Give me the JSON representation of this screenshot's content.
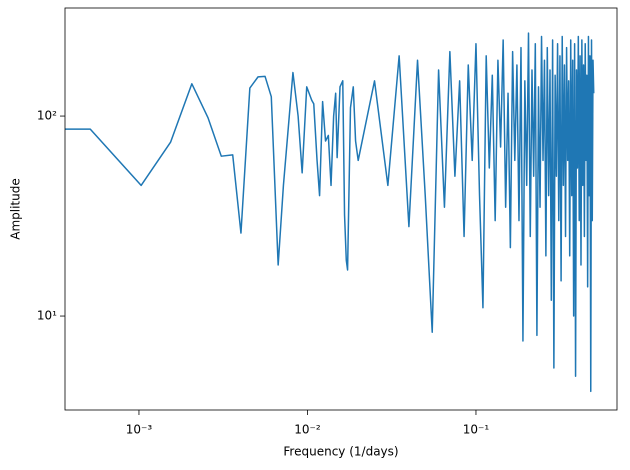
{
  "chart_data": {
    "type": "line",
    "xlabel": "Frequency (1/days)",
    "ylabel": "Amplitude",
    "xscale": "log",
    "yscale": "log",
    "xlim": [
      0.000364,
      0.687
    ],
    "ylim": [
      3.39,
      347
    ],
    "xticks": [
      {
        "value": 0.001,
        "label": "10⁻³"
      },
      {
        "value": 0.01,
        "label": "10⁻²"
      },
      {
        "value": 0.1,
        "label": "10⁻¹"
      }
    ],
    "yticks": [
      {
        "value": 10,
        "label": "10¹"
      },
      {
        "value": 100,
        "label": "10²"
      }
    ],
    "series": [
      {
        "color": "#1f77b4",
        "x": [
          0.000257,
          0.000514,
          0.00103,
          0.00154,
          0.00206,
          0.00257,
          0.00308,
          0.0036,
          0.00403,
          0.00455,
          0.00509,
          0.0056,
          0.0061,
          0.0067,
          0.0072,
          0.0078,
          0.0082,
          0.0088,
          0.0093,
          0.0099,
          0.0106,
          0.0109,
          0.0114,
          0.0118,
          0.0123,
          0.0128,
          0.0133,
          0.0138,
          0.0143,
          0.0147,
          0.015,
          0.0156,
          0.0162,
          0.0166,
          0.017,
          0.0173,
          0.018,
          0.0187,
          0.0193,
          0.02,
          0.025,
          0.03,
          0.035,
          0.04,
          0.045,
          0.05,
          0.055,
          0.06,
          0.065,
          0.07,
          0.075,
          0.08,
          0.085,
          0.09,
          0.095,
          0.1,
          0.105,
          0.11,
          0.115,
          0.12,
          0.125,
          0.13,
          0.135,
          0.14,
          0.145,
          0.15,
          0.155,
          0.16,
          0.165,
          0.17,
          0.175,
          0.18,
          0.185,
          0.19,
          0.195,
          0.2,
          0.205,
          0.21,
          0.215,
          0.22,
          0.225,
          0.23,
          0.235,
          0.24,
          0.245,
          0.25,
          0.255,
          0.26,
          0.265,
          0.27,
          0.275,
          0.28,
          0.285,
          0.29,
          0.295,
          0.3,
          0.305,
          0.31,
          0.315,
          0.32,
          0.325,
          0.33,
          0.335,
          0.34,
          0.345,
          0.35,
          0.355,
          0.36,
          0.365,
          0.37,
          0.375,
          0.38,
          0.385,
          0.39,
          0.395,
          0.4,
          0.405,
          0.41,
          0.415,
          0.42,
          0.425,
          0.43,
          0.435,
          0.44,
          0.445,
          0.45,
          0.455,
          0.46,
          0.465,
          0.47,
          0.475,
          0.48,
          0.485,
          0.49,
          0.495,
          0.5
        ],
        "values": [
          86,
          86,
          45,
          74,
          145,
          98,
          63,
          64,
          26,
          138,
          157,
          158,
          125,
          18,
          45,
          100,
          165,
          100,
          52,
          140,
          120,
          115,
          60,
          40,
          118,
          75,
          80,
          45,
          100,
          130,
          62,
          140,
          150,
          32,
          19,
          17,
          110,
          140,
          75,
          60,
          150,
          45,
          200,
          28,
          190,
          40,
          8.3,
          170,
          35,
          210,
          50,
          150,
          25,
          180,
          60,
          230,
          40,
          11,
          200,
          55,
          160,
          30,
          190,
          70,
          240,
          35,
          130,
          22,
          210,
          60,
          180,
          30,
          220,
          7.5,
          150,
          45,
          260,
          25,
          170,
          50,
          230,
          8,
          140,
          35,
          250,
          60,
          190,
          20,
          220,
          40,
          170,
          12,
          240,
          5.5,
          160,
          50,
          230,
          30,
          200,
          15,
          250,
          45,
          180,
          25,
          220,
          60,
          150,
          20,
          240,
          40,
          190,
          10,
          230,
          5,
          170,
          55,
          250,
          30,
          200,
          18,
          240,
          45,
          180,
          25,
          230,
          60,
          160,
          14,
          250,
          40,
          200,
          4.2,
          240,
          30,
          190,
          130
        ]
      }
    ]
  }
}
